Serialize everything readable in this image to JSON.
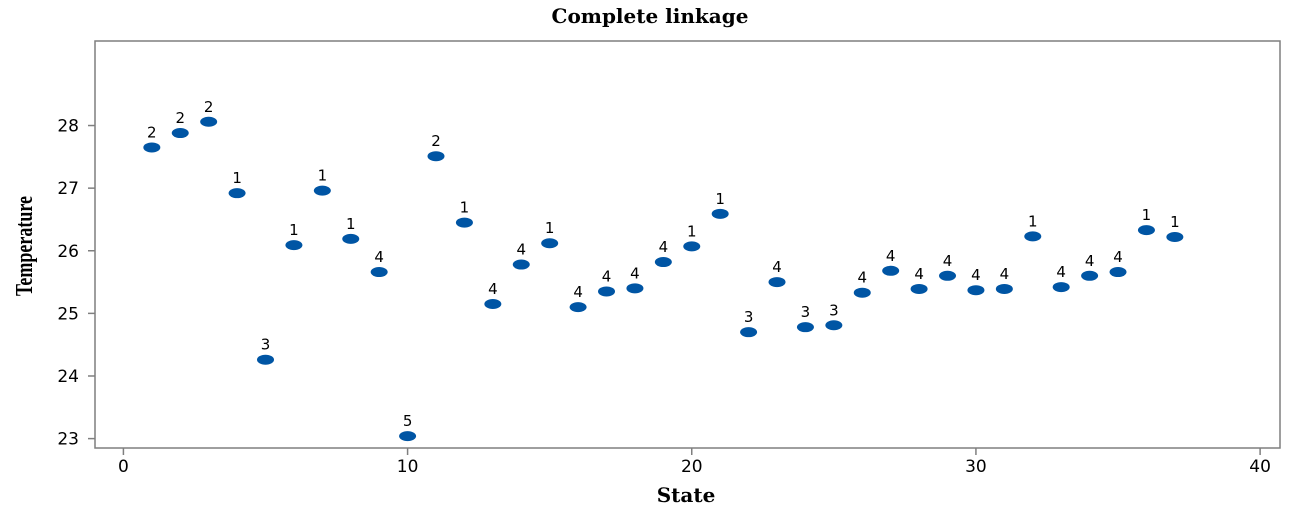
{
  "chart_data": {
    "type": "scatter",
    "title": "Complete linkage",
    "xlabel": "State",
    "ylabel": "Temperature",
    "xlim": [
      -1,
      40.7
    ],
    "ylim": [
      22.85,
      29.35
    ],
    "xticks": [
      0,
      10,
      20,
      30,
      40
    ],
    "yticks": [
      23,
      24,
      25,
      26,
      27,
      28
    ],
    "grid": false,
    "marker_color": "#0055A4",
    "points": [
      {
        "x": 1,
        "y": 27.65,
        "label": "2"
      },
      {
        "x": 2,
        "y": 27.88,
        "label": "2"
      },
      {
        "x": 3,
        "y": 28.06,
        "label": "2"
      },
      {
        "x": 4,
        "y": 26.92,
        "label": "1"
      },
      {
        "x": 5,
        "y": 24.26,
        "label": "3"
      },
      {
        "x": 6,
        "y": 26.09,
        "label": "1"
      },
      {
        "x": 7,
        "y": 26.96,
        "label": "1"
      },
      {
        "x": 8,
        "y": 26.19,
        "label": "1"
      },
      {
        "x": 9,
        "y": 25.66,
        "label": "4"
      },
      {
        "x": 10,
        "y": 23.04,
        "label": "5"
      },
      {
        "x": 11,
        "y": 27.51,
        "label": "2"
      },
      {
        "x": 12,
        "y": 26.45,
        "label": "1"
      },
      {
        "x": 13,
        "y": 25.15,
        "label": "4"
      },
      {
        "x": 14,
        "y": 25.78,
        "label": "4"
      },
      {
        "x": 15,
        "y": 26.12,
        "label": "1"
      },
      {
        "x": 16,
        "y": 25.1,
        "label": "4"
      },
      {
        "x": 17,
        "y": 25.35,
        "label": "4"
      },
      {
        "x": 18,
        "y": 25.4,
        "label": "4"
      },
      {
        "x": 19,
        "y": 25.82,
        "label": "4"
      },
      {
        "x": 20,
        "y": 26.07,
        "label": "1"
      },
      {
        "x": 21,
        "y": 26.59,
        "label": "1"
      },
      {
        "x": 22,
        "y": 24.7,
        "label": "3"
      },
      {
        "x": 23,
        "y": 25.5,
        "label": "4"
      },
      {
        "x": 24,
        "y": 24.78,
        "label": "3"
      },
      {
        "x": 25,
        "y": 24.81,
        "label": "3"
      },
      {
        "x": 26,
        "y": 25.33,
        "label": "4"
      },
      {
        "x": 27,
        "y": 25.68,
        "label": "4"
      },
      {
        "x": 28,
        "y": 25.39,
        "label": "4"
      },
      {
        "x": 29,
        "y": 25.6,
        "label": "4"
      },
      {
        "x": 30,
        "y": 25.37,
        "label": "4"
      },
      {
        "x": 31,
        "y": 25.39,
        "label": "4"
      },
      {
        "x": 32,
        "y": 26.23,
        "label": "1"
      },
      {
        "x": 33,
        "y": 25.42,
        "label": "4"
      },
      {
        "x": 34,
        "y": 25.6,
        "label": "4"
      },
      {
        "x": 35,
        "y": 25.66,
        "label": "4"
      },
      {
        "x": 36,
        "y": 26.33,
        "label": "1"
      },
      {
        "x": 37,
        "y": 26.22,
        "label": "1"
      }
    ]
  }
}
